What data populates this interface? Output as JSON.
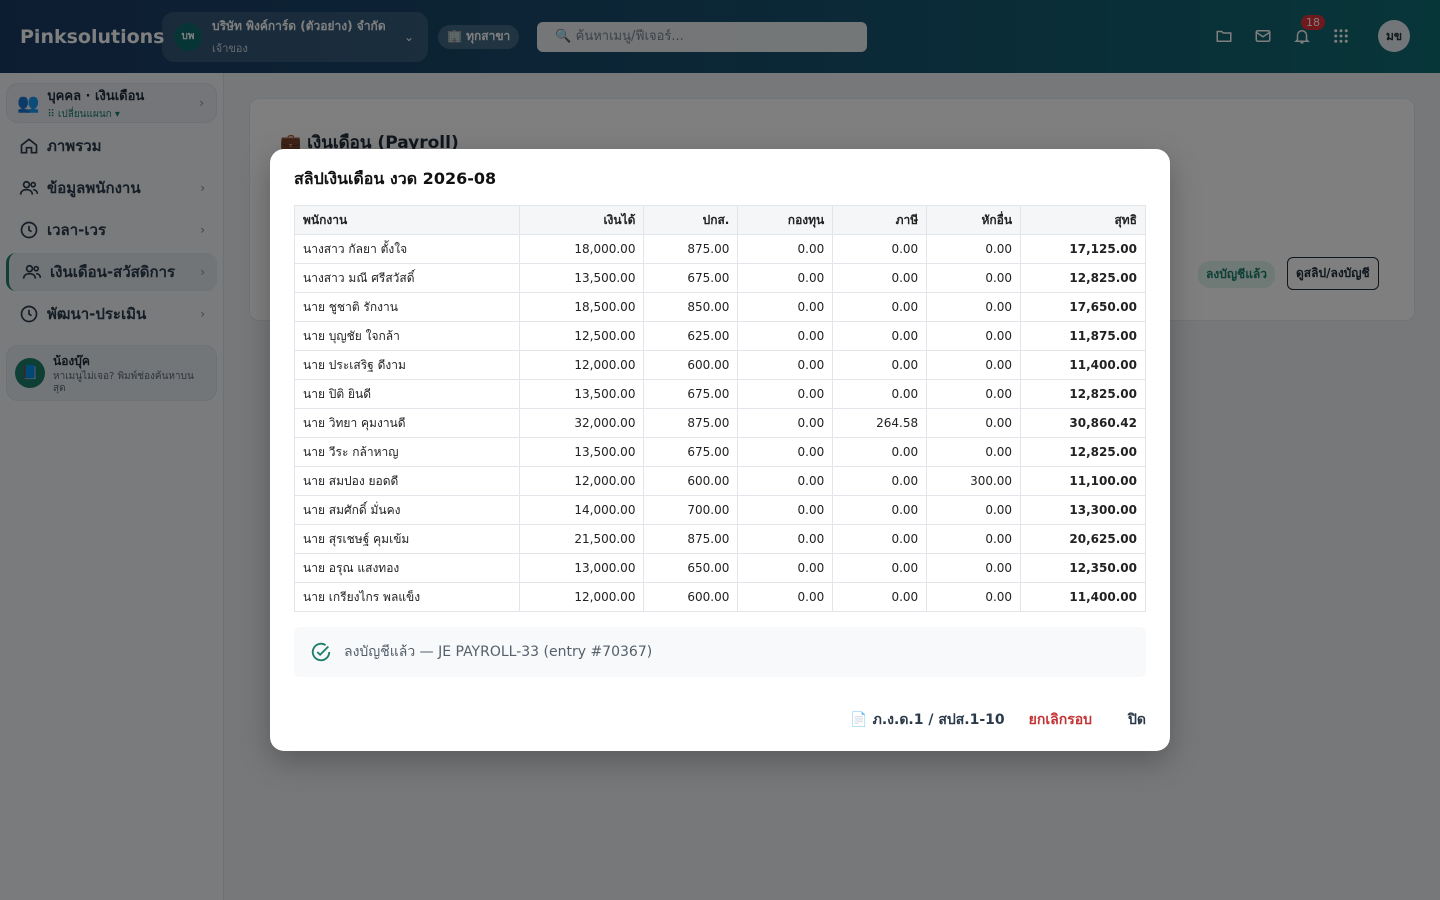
{
  "header": {
    "brand": "Pinksolutions",
    "company_badge": "บพ",
    "company_name": "บริษัท พิงค์การ์ด (ตัวอย่าง) จำกัด",
    "company_role": "เจ้าของ",
    "branch": "🏢 ทุกสาขา",
    "search_placeholder": "🔍 ค้นหาเมนู/ฟีเจอร์...",
    "notification_count": "18",
    "avatar": "มข"
  },
  "sidebar": {
    "plan_title": "บุคคล · เงินเดือน",
    "plan_sub": "⠿ เปลี่ยนแผนก ▾",
    "items": [
      {
        "label": "ภาพรวม",
        "icon": "home-icon"
      },
      {
        "label": "ข้อมูลพนักงาน",
        "icon": "users-icon"
      },
      {
        "label": "เวลา-เวร",
        "icon": "clock-icon"
      },
      {
        "label": "เงินเดือน-สวัสดิการ",
        "icon": "users-icon"
      },
      {
        "label": "พัฒนา-ประเมิน",
        "icon": "clock-icon"
      }
    ],
    "helper_name": "น้องบุ๊ค",
    "helper_desc": "หาเมนูไม่เจอ? พิมพ์ช่องค้นหาบนสุด"
  },
  "main": {
    "title": "💼 เงินเดือน (Payroll)",
    "posted_badge": "ลงบัญชีแล้ว",
    "view_button": "ดูสลิป/ลงบัญชี"
  },
  "modal": {
    "title": "สลิปเงินเดือน งวด 2026-08",
    "columns": [
      "พนักงาน",
      "เงินได้",
      "ปกส.",
      "กองทุน",
      "ภาษี",
      "หักอื่น",
      "สุทธิ"
    ],
    "rows": [
      [
        "นางสาว กัลยา ตั้งใจ",
        "18,000.00",
        "875.00",
        "0.00",
        "0.00",
        "0.00",
        "17,125.00"
      ],
      [
        "นางสาว มณี ศรีสวัสดิ์",
        "13,500.00",
        "675.00",
        "0.00",
        "0.00",
        "0.00",
        "12,825.00"
      ],
      [
        "นาย ชูชาติ รักงาน",
        "18,500.00",
        "850.00",
        "0.00",
        "0.00",
        "0.00",
        "17,650.00"
      ],
      [
        "นาย บุญชัย ใจกล้า",
        "12,500.00",
        "625.00",
        "0.00",
        "0.00",
        "0.00",
        "11,875.00"
      ],
      [
        "นาย ประเสริฐ ดีงาม",
        "12,000.00",
        "600.00",
        "0.00",
        "0.00",
        "0.00",
        "11,400.00"
      ],
      [
        "นาย ปิติ ยินดี",
        "13,500.00",
        "675.00",
        "0.00",
        "0.00",
        "0.00",
        "12,825.00"
      ],
      [
        "นาย วิทยา คุมงานดี",
        "32,000.00",
        "875.00",
        "0.00",
        "264.58",
        "0.00",
        "30,860.42"
      ],
      [
        "นาย วีระ กล้าหาญ",
        "13,500.00",
        "675.00",
        "0.00",
        "0.00",
        "0.00",
        "12,825.00"
      ],
      [
        "นาย สมปอง ยอดดี",
        "12,000.00",
        "600.00",
        "0.00",
        "0.00",
        "300.00",
        "11,100.00"
      ],
      [
        "นาย สมศักดิ์ มั่นคง",
        "14,000.00",
        "700.00",
        "0.00",
        "0.00",
        "0.00",
        "13,300.00"
      ],
      [
        "นาย สุรเชษฐ์ คุมเข้ม",
        "21,500.00",
        "875.00",
        "0.00",
        "0.00",
        "0.00",
        "20,625.00"
      ],
      [
        "นาย อรุณ แสงทอง",
        "13,000.00",
        "650.00",
        "0.00",
        "0.00",
        "0.00",
        "12,350.00"
      ],
      [
        "นาย เกรียงไกร พลแข็ง",
        "12,000.00",
        "600.00",
        "0.00",
        "0.00",
        "0.00",
        "11,400.00"
      ]
    ],
    "status_text": "ลงบัญชีแล้ว — JE PAYROLL-33 (entry #70367)",
    "form_button": "📄 ภ.ง.ด.1 / สปส.1-10",
    "cancel_button": "ยกเลิกรอบ",
    "close_button": "ปิด"
  }
}
